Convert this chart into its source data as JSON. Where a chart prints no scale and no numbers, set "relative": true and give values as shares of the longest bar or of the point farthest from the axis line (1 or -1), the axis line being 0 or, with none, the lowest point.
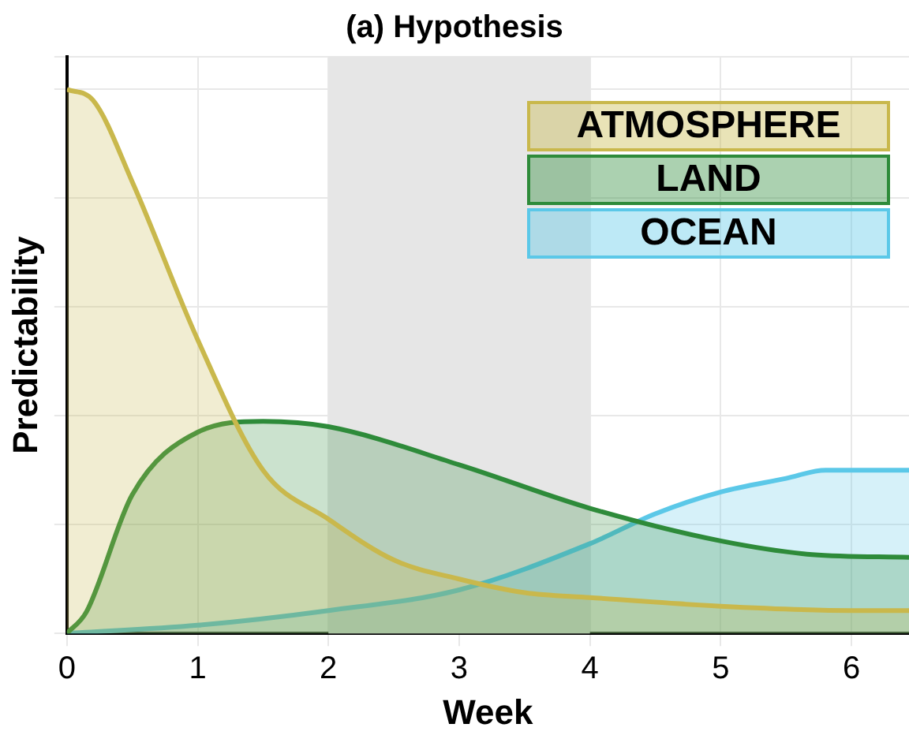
{
  "chart_data": {
    "type": "area",
    "title": "(a) Hypothesis",
    "xlabel": "Week",
    "ylabel": "Predictability",
    "relative": true,
    "xlim": [
      0,
      6.44
    ],
    "xticks": [
      0,
      1,
      2,
      3,
      4,
      5,
      6
    ],
    "grid": true,
    "legend": "top right",
    "bands": [
      {
        "axis": "x",
        "from": 2,
        "to": 4,
        "color": "#e6e6e6"
      }
    ],
    "series": [
      {
        "name": "ATMOSPHERE",
        "color": "#c9b84c",
        "x": [
          0,
          0.2,
          0.5,
          1,
          1.5,
          2,
          2.5,
          3,
          3.5,
          4,
          5,
          6,
          6.44
        ],
        "values": [
          1,
          0.98,
          0.83,
          0.54,
          0.3,
          0.21,
          0.135,
          0.1,
          0.075,
          0.066,
          0.05,
          0.042,
          0.042
        ]
      },
      {
        "name": "LAND",
        "color": "#2e8b3a",
        "x": [
          0,
          0.15,
          0.5,
          1,
          1.5,
          2,
          3,
          4,
          5,
          5.7,
          6.44
        ],
        "values": [
          0,
          0.04,
          0.255,
          0.37,
          0.39,
          0.38,
          0.31,
          0.23,
          0.17,
          0.145,
          0.14
        ]
      },
      {
        "name": "OCEAN",
        "color": "#5bc8e8",
        "x": [
          0,
          1,
          2,
          3,
          4,
          4.5,
          5,
          5.5,
          5.8,
          6.44
        ],
        "values": [
          0,
          0.015,
          0.042,
          0.08,
          0.165,
          0.22,
          0.26,
          0.285,
          0.3,
          0.3
        ]
      }
    ]
  }
}
